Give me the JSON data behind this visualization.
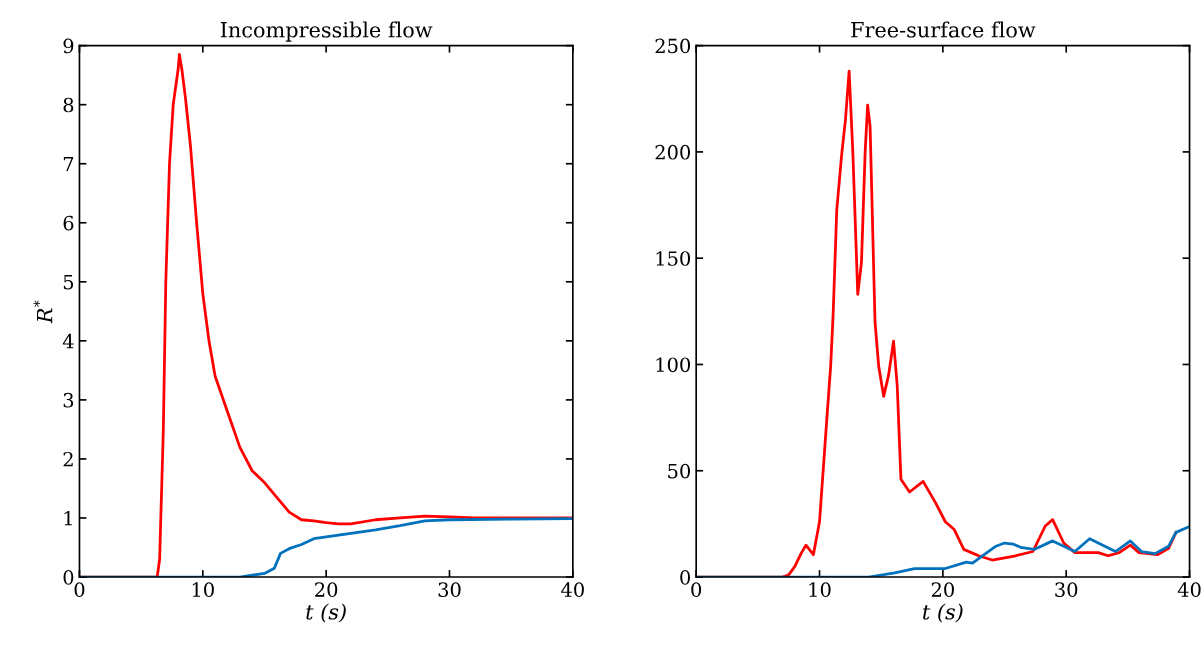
{
  "chart_data": [
    {
      "type": "line",
      "title": "Incompressible flow",
      "xlabel": "t (s)",
      "ylabel": "R$^{*}$",
      "xlim": [
        0,
        40
      ],
      "xticks": [
        0,
        10,
        20,
        30,
        40
      ],
      "ylim": [
        0,
        9
      ],
      "yticks": [
        0,
        1,
        2,
        3,
        4,
        5,
        6,
        7,
        8,
        9
      ],
      "grid": false,
      "legend": false,
      "series": [
        {
          "color": "#ff0000",
          "x": [
            0,
            6.3,
            6.5,
            6.8,
            7.0,
            7.3,
            7.6,
            8.0,
            8.1,
            8.3,
            8.6,
            9.0,
            9.5,
            10,
            10.5,
            11,
            12,
            13,
            14,
            15,
            16,
            17,
            18,
            19,
            20,
            21,
            22,
            24,
            26,
            28,
            30,
            32,
            35,
            40
          ],
          "values": [
            0,
            0,
            0.3,
            2.5,
            5,
            7,
            8.0,
            8.6,
            8.85,
            8.6,
            8.1,
            7.3,
            6.0,
            4.8,
            4.0,
            3.4,
            2.8,
            2.2,
            1.8,
            1.6,
            1.35,
            1.1,
            0.97,
            0.95,
            0.92,
            0.9,
            0.9,
            0.97,
            1.0,
            1.03,
            1.02,
            1.0,
            1.0,
            1.0
          ]
        },
        {
          "color": "#0072bd",
          "x": [
            0,
            13,
            14,
            15,
            15.8,
            16.3,
            17,
            18,
            19,
            20,
            22,
            24,
            26,
            28,
            30,
            35,
            40
          ],
          "values": [
            0,
            0,
            0.03,
            0.06,
            0.15,
            0.4,
            0.48,
            0.55,
            0.65,
            0.68,
            0.74,
            0.8,
            0.87,
            0.95,
            0.97,
            0.98,
            0.99
          ]
        }
      ]
    },
    {
      "type": "line",
      "title": "Free-surface flow",
      "xlabel": "t (s)",
      "xlim": [
        0,
        40
      ],
      "xticks": [
        0,
        10,
        20,
        30,
        40
      ],
      "ylim": [
        0,
        250
      ],
      "yticks": [
        0,
        50,
        100,
        150,
        200,
        250
      ],
      "grid": false,
      "legend": false,
      "series": [
        {
          "color": "#ff0000",
          "x": [
            0,
            7,
            7.5,
            8.0,
            8.5,
            8.9,
            9.5,
            10,
            10.6,
            10.9,
            11.1,
            11.4,
            11.8,
            12.1,
            12.4,
            12.7,
            13.1,
            13.4,
            13.7,
            13.9,
            14.1,
            14.5,
            14.8,
            15.2,
            15.6,
            16.0,
            16.3,
            16.6,
            17.3,
            18.4,
            19.4,
            20.2,
            20.9,
            21.7,
            22.9,
            24,
            25.9,
            27.3,
            28.3,
            28.9,
            29.8,
            30.7,
            32.6,
            33.4,
            34.3,
            35.2,
            35.9,
            37.4,
            38.3,
            38.9
          ],
          "values": [
            0,
            0,
            1,
            5,
            11,
            15,
            10.5,
            26,
            75,
            99,
            123,
            173,
            199,
            215,
            238,
            200,
            133,
            148,
            200,
            222,
            212,
            120,
            99,
            85,
            95,
            111,
            90,
            46,
            40,
            45,
            35,
            26,
            22.5,
            13,
            10,
            8,
            10,
            12,
            24,
            27,
            16,
            11.5,
            11.5,
            10,
            11.5,
            15,
            11.5,
            10.5,
            13.5,
            21
          ]
        },
        {
          "color": "#0072bd",
          "x": [
            0,
            14,
            16.1,
            17.7,
            20.2,
            21.9,
            22.4,
            24.3,
            25,
            25.7,
            26.3,
            27.4,
            28.9,
            30.7,
            31.9,
            34,
            35.2,
            36.1,
            37.2,
            38.3,
            38.9,
            39.9
          ],
          "values": [
            0,
            0,
            2,
            4,
            4,
            7,
            6.5,
            14.5,
            16,
            15.5,
            14,
            13,
            17,
            12,
            18,
            12,
            17,
            12,
            11,
            14.5,
            21,
            23.5
          ]
        }
      ]
    }
  ]
}
